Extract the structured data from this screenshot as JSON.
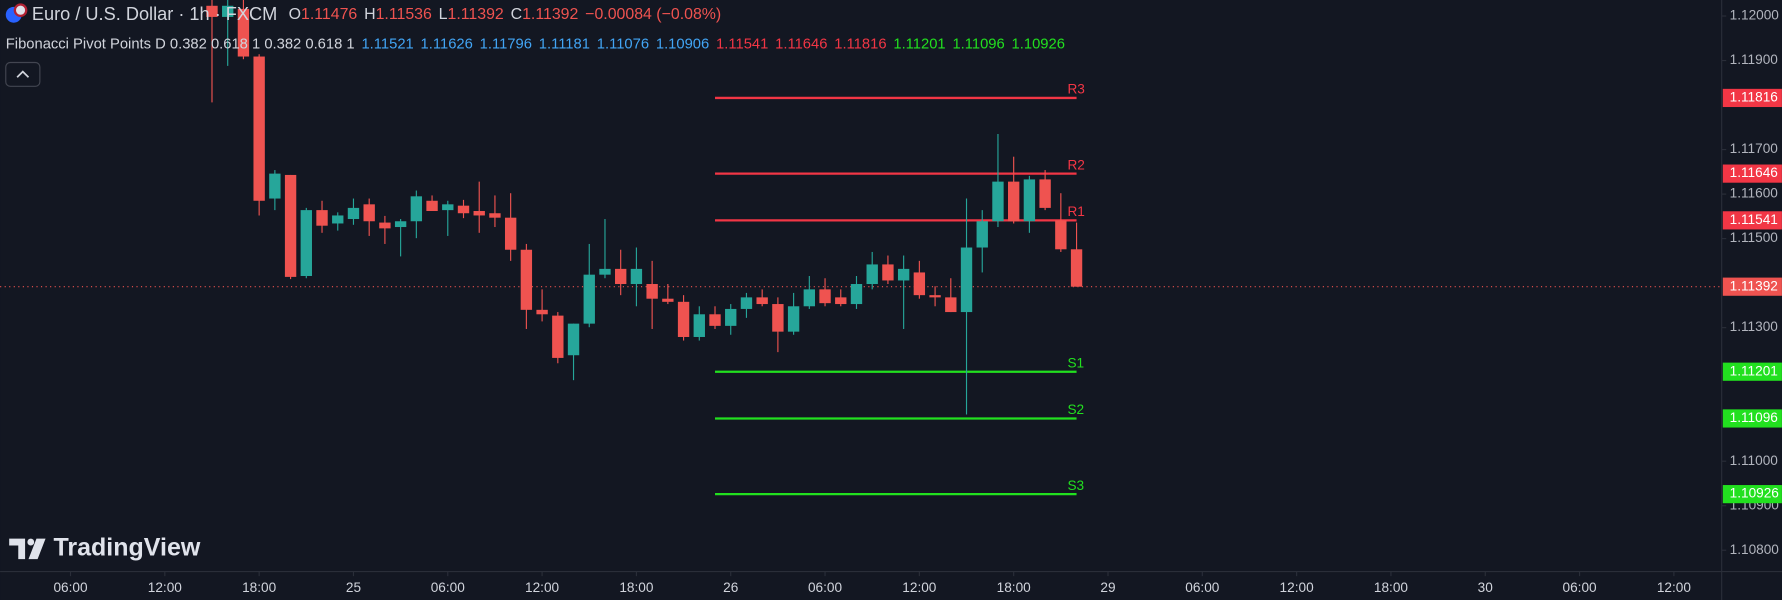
{
  "chart_data": {
    "type": "candlestick",
    "title": "Euro / U.S. Dollar · 1h · FXCM",
    "ohlc_labels": [
      "O",
      "H",
      "L",
      "C"
    ],
    "change": "−0.00084 (−0.08%)",
    "watermark": "TradingView",
    "up_color": "#26a69a",
    "down_color": "#ef5350",
    "grid": false,
    "xlim": [
      1.52,
      111.04
    ],
    "ylim": [
      1.10752,
      1.12036
    ],
    "xticks": [
      {
        "value": 6,
        "label": "06:00"
      },
      {
        "value": 12,
        "label": "12:00"
      },
      {
        "value": 18,
        "label": "18:00"
      },
      {
        "value": 24,
        "label": "25"
      },
      {
        "value": 30,
        "label": "06:00"
      },
      {
        "value": 36,
        "label": "12:00"
      },
      {
        "value": 42,
        "label": "18:00"
      },
      {
        "value": 48,
        "label": "26"
      },
      {
        "value": 54,
        "label": "06:00"
      },
      {
        "value": 60,
        "label": "12:00"
      },
      {
        "value": 66,
        "label": "18:00"
      },
      {
        "value": 72,
        "label": "29"
      },
      {
        "value": 78,
        "label": "06:00"
      },
      {
        "value": 84,
        "label": "12:00"
      },
      {
        "value": 90,
        "label": "18:00"
      },
      {
        "value": 96,
        "label": "30"
      },
      {
        "value": 102,
        "label": "06:00"
      },
      {
        "value": 108,
        "label": "12:00"
      }
    ],
    "yticks": [
      {
        "value": 1.12,
        "label": "1.12000"
      },
      {
        "value": 1.119,
        "label": "1.11900"
      },
      {
        "value": 1.117,
        "label": "1.11700"
      },
      {
        "value": 1.116,
        "label": "1.11600"
      },
      {
        "value": 1.115,
        "label": "1.11500"
      },
      {
        "value": 1.113,
        "label": "1.11300"
      },
      {
        "value": 1.11,
        "label": "1.11000"
      },
      {
        "value": 1.109,
        "label": "1.10900"
      },
      {
        "value": 1.108,
        "label": "1.10800"
      }
    ],
    "x": [
      15,
      16,
      17,
      18,
      19,
      20,
      21,
      22,
      23,
      24,
      25,
      26,
      27,
      28,
      29,
      30,
      31,
      32,
      33,
      34,
      35,
      36,
      37,
      38,
      39,
      40,
      41,
      42,
      43,
      44,
      45,
      46,
      47,
      48,
      49,
      50,
      51,
      52,
      53,
      54,
      55,
      56,
      57,
      58,
      59,
      60,
      61,
      62,
      63,
      64,
      65,
      66,
      67,
      68,
      69,
      70
    ],
    "open": [
      1.12023,
      1.11998,
      1.12016,
      1.11909,
      1.1159,
      1.11643,
      1.11416,
      1.11564,
      1.11534,
      1.11544,
      1.11577,
      1.11536,
      1.11526,
      1.11539,
      1.11585,
      1.11564,
      1.11574,
      1.11562,
      1.11557,
      1.11547,
      1.11475,
      1.1134,
      1.11327,
      1.11238,
      1.11309,
      1.11419,
      1.11432,
      1.11398,
      1.11398,
      1.11365,
      1.11358,
      1.11279,
      1.1133,
      1.11304,
      1.11342,
      1.11368,
      1.11353,
      1.11291,
      1.11348,
      1.11386,
      1.11368,
      1.11353,
      1.11398,
      1.11442,
      1.11406,
      1.11424,
      1.11373,
      1.11368,
      1.11335,
      1.1148,
      1.11539,
      1.11628,
      1.11539,
      1.11633,
      1.11541,
      1.11476
    ],
    "high": [
      1.12036,
      1.12036,
      1.12036,
      1.11914,
      1.11654,
      1.11643,
      1.11569,
      1.11585,
      1.11559,
      1.1159,
      1.1159,
      1.11551,
      1.11544,
      1.11608,
      1.11597,
      1.11585,
      1.11587,
      1.11628,
      1.11597,
      1.11602,
      1.11488,
      1.11386,
      1.11335,
      1.11309,
      1.11488,
      1.11544,
      1.11475,
      1.1148,
      1.1145,
      1.11398,
      1.11373,
      1.11348,
      1.11348,
      1.11353,
      1.11378,
      1.11386,
      1.11368,
      1.11378,
      1.11416,
      1.11411,
      1.11386,
      1.11416,
      1.1147,
      1.11462,
      1.11462,
      1.1145,
      1.11393,
      1.11411,
      1.1159,
      1.11564,
      1.11735,
      1.11684,
      1.11641,
      1.11654,
      1.11602,
      1.11536
    ],
    "low": [
      1.11806,
      1.11888,
      1.11903,
      1.11552,
      1.11564,
      1.11409,
      1.11411,
      1.11513,
      1.11518,
      1.11531,
      1.11506,
      1.11488,
      1.1146,
      1.11501,
      1.11562,
      1.11506,
      1.11546,
      1.11513,
      1.11526,
      1.1145,
      1.11297,
      1.11314,
      1.1122,
      1.11182,
      1.11301,
      1.11411,
      1.11373,
      1.11348,
      1.11297,
      1.11353,
      1.11271,
      1.11271,
      1.11297,
      1.11284,
      1.11322,
      1.11348,
      1.11245,
      1.11284,
      1.11342,
      1.11348,
      1.11348,
      1.11342,
      1.11386,
      1.11398,
      1.11297,
      1.11365,
      1.11348,
      1.11335,
      1.11105,
      1.11424,
      1.11526,
      1.11534,
      1.11513,
      1.11564,
      1.1147,
      1.11392
    ],
    "close": [
      1.11998,
      1.12023,
      1.11909,
      1.11585,
      1.11646,
      1.11414,
      1.11564,
      1.11529,
      1.11552,
      1.11569,
      1.11539,
      1.11523,
      1.11539,
      1.11595,
      1.11562,
      1.11577,
      1.11557,
      1.11552,
      1.11547,
      1.11475,
      1.1134,
      1.1133,
      1.11232,
      1.11309,
      1.11419,
      1.11432,
      1.11398,
      1.11432,
      1.11365,
      1.11358,
      1.11279,
      1.1133,
      1.11304,
      1.11342,
      1.11368,
      1.11353,
      1.11291,
      1.11348,
      1.11386,
      1.11355,
      1.11353,
      1.11398,
      1.11442,
      1.11406,
      1.11432,
      1.11373,
      1.11368,
      1.11335,
      1.1148,
      1.11539,
      1.11628,
      1.11539,
      1.11633,
      1.11569,
      1.11476,
      1.11392
    ],
    "indicator": {
      "name": "Fibonacci Pivot Points D 0.382 0.618 1 0.382 0.618 1",
      "values": [
        1.11521,
        1.11626,
        1.11796,
        1.11181,
        1.11076,
        1.10906,
        1.11541,
        1.11646,
        1.11816,
        1.11201,
        1.11096,
        1.10926
      ],
      "colors": [
        "#42a5f5",
        "#42a5f5",
        "#42a5f5",
        "#42a5f5",
        "#42a5f5",
        "#42a5f5",
        "#f23645",
        "#f23645",
        "#f23645",
        "#22e01f",
        "#22e01f",
        "#22e01f"
      ],
      "level_labels": [
        null,
        null,
        null,
        null,
        null,
        null,
        "R1",
        "R2",
        "R3",
        "S1",
        "S2",
        "S3"
      ],
      "level_span": [
        47,
        70
      ]
    }
  }
}
